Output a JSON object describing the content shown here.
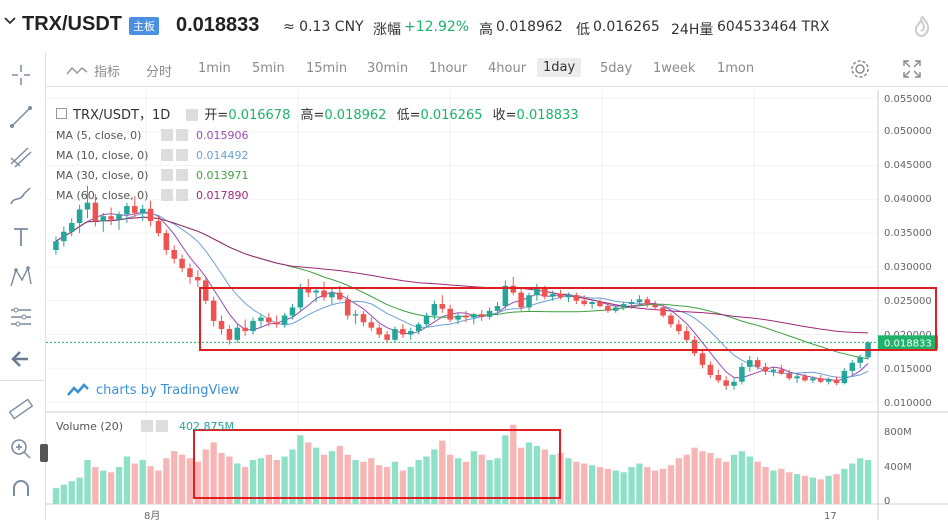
{
  "header": {
    "pair": "TRX/USDT",
    "badge": "主板",
    "price": "0.018833",
    "cny": "≈ 0.13 CNY",
    "change_label": "涨幅",
    "change": "+12.92%",
    "high_label": "高",
    "high": "0.018962",
    "low_label": "低",
    "low": "0.016265",
    "volume_label": "24H量",
    "volume": "604533464 TRX"
  },
  "toolbar": {
    "indicators": "指标",
    "timeframes": [
      "分时",
      "1min",
      "5min",
      "15min",
      "30min",
      "1hour",
      "4hour",
      "1day",
      "5day",
      "1week",
      "1mon"
    ],
    "active": "1day"
  },
  "legend": {
    "title": "TRX/USDT，1D",
    "open_label": "开=",
    "open": "0.016678",
    "high_label": "高=",
    "high": "0.018962",
    "low_label": "低=",
    "low": "0.016265",
    "close_label": "收=",
    "close": "0.018833",
    "ma": [
      {
        "label": "MA (5, close, 0)",
        "value": "0.015906",
        "color": "#9a4bb0"
      },
      {
        "label": "MA (10, close, 0)",
        "value": "0.014492",
        "color": "#6aa0d6"
      },
      {
        "label": "MA (30, close, 0)",
        "value": "0.013971",
        "color": "#40a040"
      },
      {
        "label": "MA (60, close, 0)",
        "value": "0.017890",
        "color": "#a0287a"
      }
    ]
  },
  "yaxis": [
    "0.055000",
    "0.050000",
    "0.045000",
    "0.040000",
    "0.035000",
    "0.030000",
    "0.025000",
    "0.020000",
    "0.015000",
    "0.010000"
  ],
  "last_price_tag": "0.018833",
  "watermark": "charts by TradingView",
  "volume": {
    "label": "Volume (20)",
    "value": "402.875M",
    "axis": [
      "800M",
      "400M",
      "0"
    ]
  },
  "xaxis": [
    "8月",
    "17"
  ],
  "colors": {
    "up": "#26a69a",
    "down": "#ef5350",
    "up_vol": "#8ee0c6",
    "down_vol": "#f7b5b5",
    "box": "#e02020",
    "tag": "#1eb26a"
  },
  "chart_data": {
    "type": "candlestick",
    "note_series": "daily candles TRX/USDT",
    "ylim": [
      0.008,
      0.057
    ],
    "values": [
      [
        0.0325,
        0.0345,
        0.0318,
        0.0338
      ],
      [
        0.0338,
        0.036,
        0.033,
        0.0352
      ],
      [
        0.0352,
        0.0372,
        0.0345,
        0.0365
      ],
      [
        0.0365,
        0.0392,
        0.035,
        0.0385
      ],
      [
        0.0385,
        0.042,
        0.0372,
        0.0395
      ],
      [
        0.0395,
        0.0408,
        0.036,
        0.0368
      ],
      [
        0.0368,
        0.038,
        0.0352,
        0.0375
      ],
      [
        0.0375,
        0.0388,
        0.0362,
        0.037
      ],
      [
        0.037,
        0.0382,
        0.0355,
        0.0378
      ],
      [
        0.0378,
        0.0395,
        0.0365,
        0.039
      ],
      [
        0.039,
        0.0405,
        0.0372,
        0.038
      ],
      [
        0.038,
        0.0392,
        0.0368,
        0.0386
      ],
      [
        0.0386,
        0.0398,
        0.036,
        0.0368
      ],
      [
        0.0368,
        0.0375,
        0.0345,
        0.035
      ],
      [
        0.035,
        0.0355,
        0.0318,
        0.0325
      ],
      [
        0.0325,
        0.0332,
        0.0305,
        0.0312
      ],
      [
        0.0312,
        0.0318,
        0.0292,
        0.0298
      ],
      [
        0.0298,
        0.0305,
        0.0275,
        0.0285
      ],
      [
        0.0285,
        0.0295,
        0.027,
        0.028
      ],
      [
        0.028,
        0.0284,
        0.0245,
        0.025
      ],
      [
        0.025,
        0.0256,
        0.0212,
        0.022
      ],
      [
        0.022,
        0.0228,
        0.02,
        0.0208
      ],
      [
        0.0208,
        0.0214,
        0.0185,
        0.0192
      ],
      [
        0.0192,
        0.0215,
        0.0188,
        0.021
      ],
      [
        0.021,
        0.0222,
        0.0198,
        0.0205
      ],
      [
        0.0205,
        0.0225,
        0.02,
        0.022
      ],
      [
        0.022,
        0.023,
        0.021,
        0.0225
      ],
      [
        0.0225,
        0.0232,
        0.0212,
        0.0218
      ],
      [
        0.0218,
        0.0228,
        0.021,
        0.0215
      ],
      [
        0.0215,
        0.0232,
        0.021,
        0.0228
      ],
      [
        0.0228,
        0.0245,
        0.0222,
        0.024
      ],
      [
        0.024,
        0.0275,
        0.0235,
        0.027
      ],
      [
        0.027,
        0.0282,
        0.0255,
        0.0262
      ],
      [
        0.0262,
        0.027,
        0.0248,
        0.0265
      ],
      [
        0.0265,
        0.0278,
        0.025,
        0.0255
      ],
      [
        0.0255,
        0.0268,
        0.0245,
        0.0262
      ],
      [
        0.0262,
        0.0272,
        0.025,
        0.0252
      ],
      [
        0.0252,
        0.0258,
        0.0222,
        0.0228
      ],
      [
        0.0228,
        0.0236,
        0.0215,
        0.023
      ],
      [
        0.023,
        0.0235,
        0.0212,
        0.0218
      ],
      [
        0.0218,
        0.0225,
        0.0205,
        0.021
      ],
      [
        0.021,
        0.0215,
        0.0195,
        0.02
      ],
      [
        0.02,
        0.0205,
        0.0188,
        0.0192
      ],
      [
        0.0192,
        0.0212,
        0.0188,
        0.0208
      ],
      [
        0.0208,
        0.0215,
        0.0195,
        0.02
      ],
      [
        0.02,
        0.021,
        0.0192,
        0.0205
      ],
      [
        0.0205,
        0.0218,
        0.02,
        0.0215
      ],
      [
        0.0215,
        0.0232,
        0.021,
        0.0228
      ],
      [
        0.0228,
        0.025,
        0.0222,
        0.0245
      ],
      [
        0.0245,
        0.0258,
        0.0232,
        0.0238
      ],
      [
        0.0238,
        0.0244,
        0.0218,
        0.0222
      ],
      [
        0.0222,
        0.0232,
        0.0215,
        0.0228
      ],
      [
        0.0228,
        0.0235,
        0.0218,
        0.0225
      ],
      [
        0.0225,
        0.0232,
        0.0215,
        0.023
      ],
      [
        0.023,
        0.0236,
        0.022,
        0.0226
      ],
      [
        0.0226,
        0.024,
        0.0222,
        0.0235
      ],
      [
        0.0235,
        0.0248,
        0.0228,
        0.0242
      ],
      [
        0.0242,
        0.028,
        0.0238,
        0.0272
      ],
      [
        0.0272,
        0.0285,
        0.0258,
        0.0262
      ],
      [
        0.0262,
        0.027,
        0.0235,
        0.024
      ],
      [
        0.024,
        0.0262,
        0.0235,
        0.0258
      ],
      [
        0.0258,
        0.0275,
        0.025,
        0.0268
      ],
      [
        0.0268,
        0.0272,
        0.0252,
        0.0256
      ],
      [
        0.0256,
        0.0265,
        0.025,
        0.026
      ],
      [
        0.026,
        0.0266,
        0.0252,
        0.0255
      ],
      [
        0.0255,
        0.0262,
        0.0248,
        0.0258
      ],
      [
        0.0258,
        0.0262,
        0.0245,
        0.025
      ],
      [
        0.025,
        0.0258,
        0.0242,
        0.0245
      ],
      [
        0.0245,
        0.0252,
        0.0238,
        0.0248
      ],
      [
        0.0248,
        0.0252,
        0.024,
        0.0242
      ],
      [
        0.0242,
        0.0248,
        0.0232,
        0.0235
      ],
      [
        0.0235,
        0.0245,
        0.0232,
        0.024
      ],
      [
        0.024,
        0.0248,
        0.0236,
        0.0245
      ],
      [
        0.0245,
        0.0252,
        0.0238,
        0.0248
      ],
      [
        0.0248,
        0.0258,
        0.0242,
        0.0252
      ],
      [
        0.0252,
        0.0256,
        0.024,
        0.0244
      ],
      [
        0.0244,
        0.025,
        0.0236,
        0.024
      ],
      [
        0.024,
        0.0245,
        0.0225,
        0.0228
      ],
      [
        0.0228,
        0.0232,
        0.021,
        0.0215
      ],
      [
        0.0215,
        0.0222,
        0.02,
        0.0205
      ],
      [
        0.0205,
        0.0212,
        0.0188,
        0.0192
      ],
      [
        0.0192,
        0.0198,
        0.0168,
        0.0172
      ],
      [
        0.0172,
        0.0178,
        0.015,
        0.0155
      ],
      [
        0.0155,
        0.016,
        0.0135,
        0.014
      ],
      [
        0.014,
        0.0148,
        0.0128,
        0.0132
      ],
      [
        0.0132,
        0.0138,
        0.0118,
        0.0124
      ],
      [
        0.0124,
        0.0136,
        0.0118,
        0.013
      ],
      [
        0.013,
        0.0158,
        0.0126,
        0.0152
      ],
      [
        0.0152,
        0.0168,
        0.0145,
        0.0162
      ],
      [
        0.0162,
        0.0166,
        0.0148,
        0.0152
      ],
      [
        0.0152,
        0.0158,
        0.014,
        0.0145
      ],
      [
        0.0145,
        0.0152,
        0.0138,
        0.0148
      ],
      [
        0.0148,
        0.0155,
        0.014,
        0.0142
      ],
      [
        0.0142,
        0.0148,
        0.0132,
        0.0135
      ],
      [
        0.0135,
        0.0142,
        0.0128,
        0.0138
      ],
      [
        0.0138,
        0.0142,
        0.013,
        0.0132
      ],
      [
        0.0132,
        0.0138,
        0.0128,
        0.0135
      ],
      [
        0.0135,
        0.014,
        0.0128,
        0.013
      ],
      [
        0.013,
        0.0136,
        0.0126,
        0.0133
      ],
      [
        0.0133,
        0.0138,
        0.0125,
        0.0128
      ],
      [
        0.0128,
        0.015,
        0.0126,
        0.0146
      ],
      [
        0.0146,
        0.0162,
        0.014,
        0.0158
      ],
      [
        0.0158,
        0.017,
        0.015,
        0.0166
      ],
      [
        0.0166,
        0.019,
        0.0163,
        0.0188
      ]
    ],
    "volume_values": [
      180,
      220,
      260,
      300,
      500,
      420,
      380,
      360,
      420,
      540,
      460,
      500,
      430,
      380,
      520,
      600,
      560,
      520,
      480,
      620,
      700,
      580,
      540,
      460,
      420,
      500,
      520,
      560,
      500,
      540,
      620,
      780,
      700,
      640,
      560,
      600,
      660,
      560,
      500,
      480,
      520,
      440,
      420,
      480,
      380,
      420,
      500,
      540,
      620,
      720,
      560,
      520,
      480,
      600,
      560,
      500,
      520,
      780,
      900,
      640,
      700,
      660,
      620,
      560,
      580,
      520,
      480,
      460,
      440,
      420,
      400,
      380,
      360,
      420,
      460,
      420,
      380,
      400,
      440,
      520,
      560,
      640,
      600,
      580,
      520,
      480,
      560,
      600,
      540,
      480,
      420,
      380,
      400,
      360,
      340,
      320,
      300,
      280,
      320,
      340,
      400,
      460,
      520,
      500,
      400
    ]
  }
}
